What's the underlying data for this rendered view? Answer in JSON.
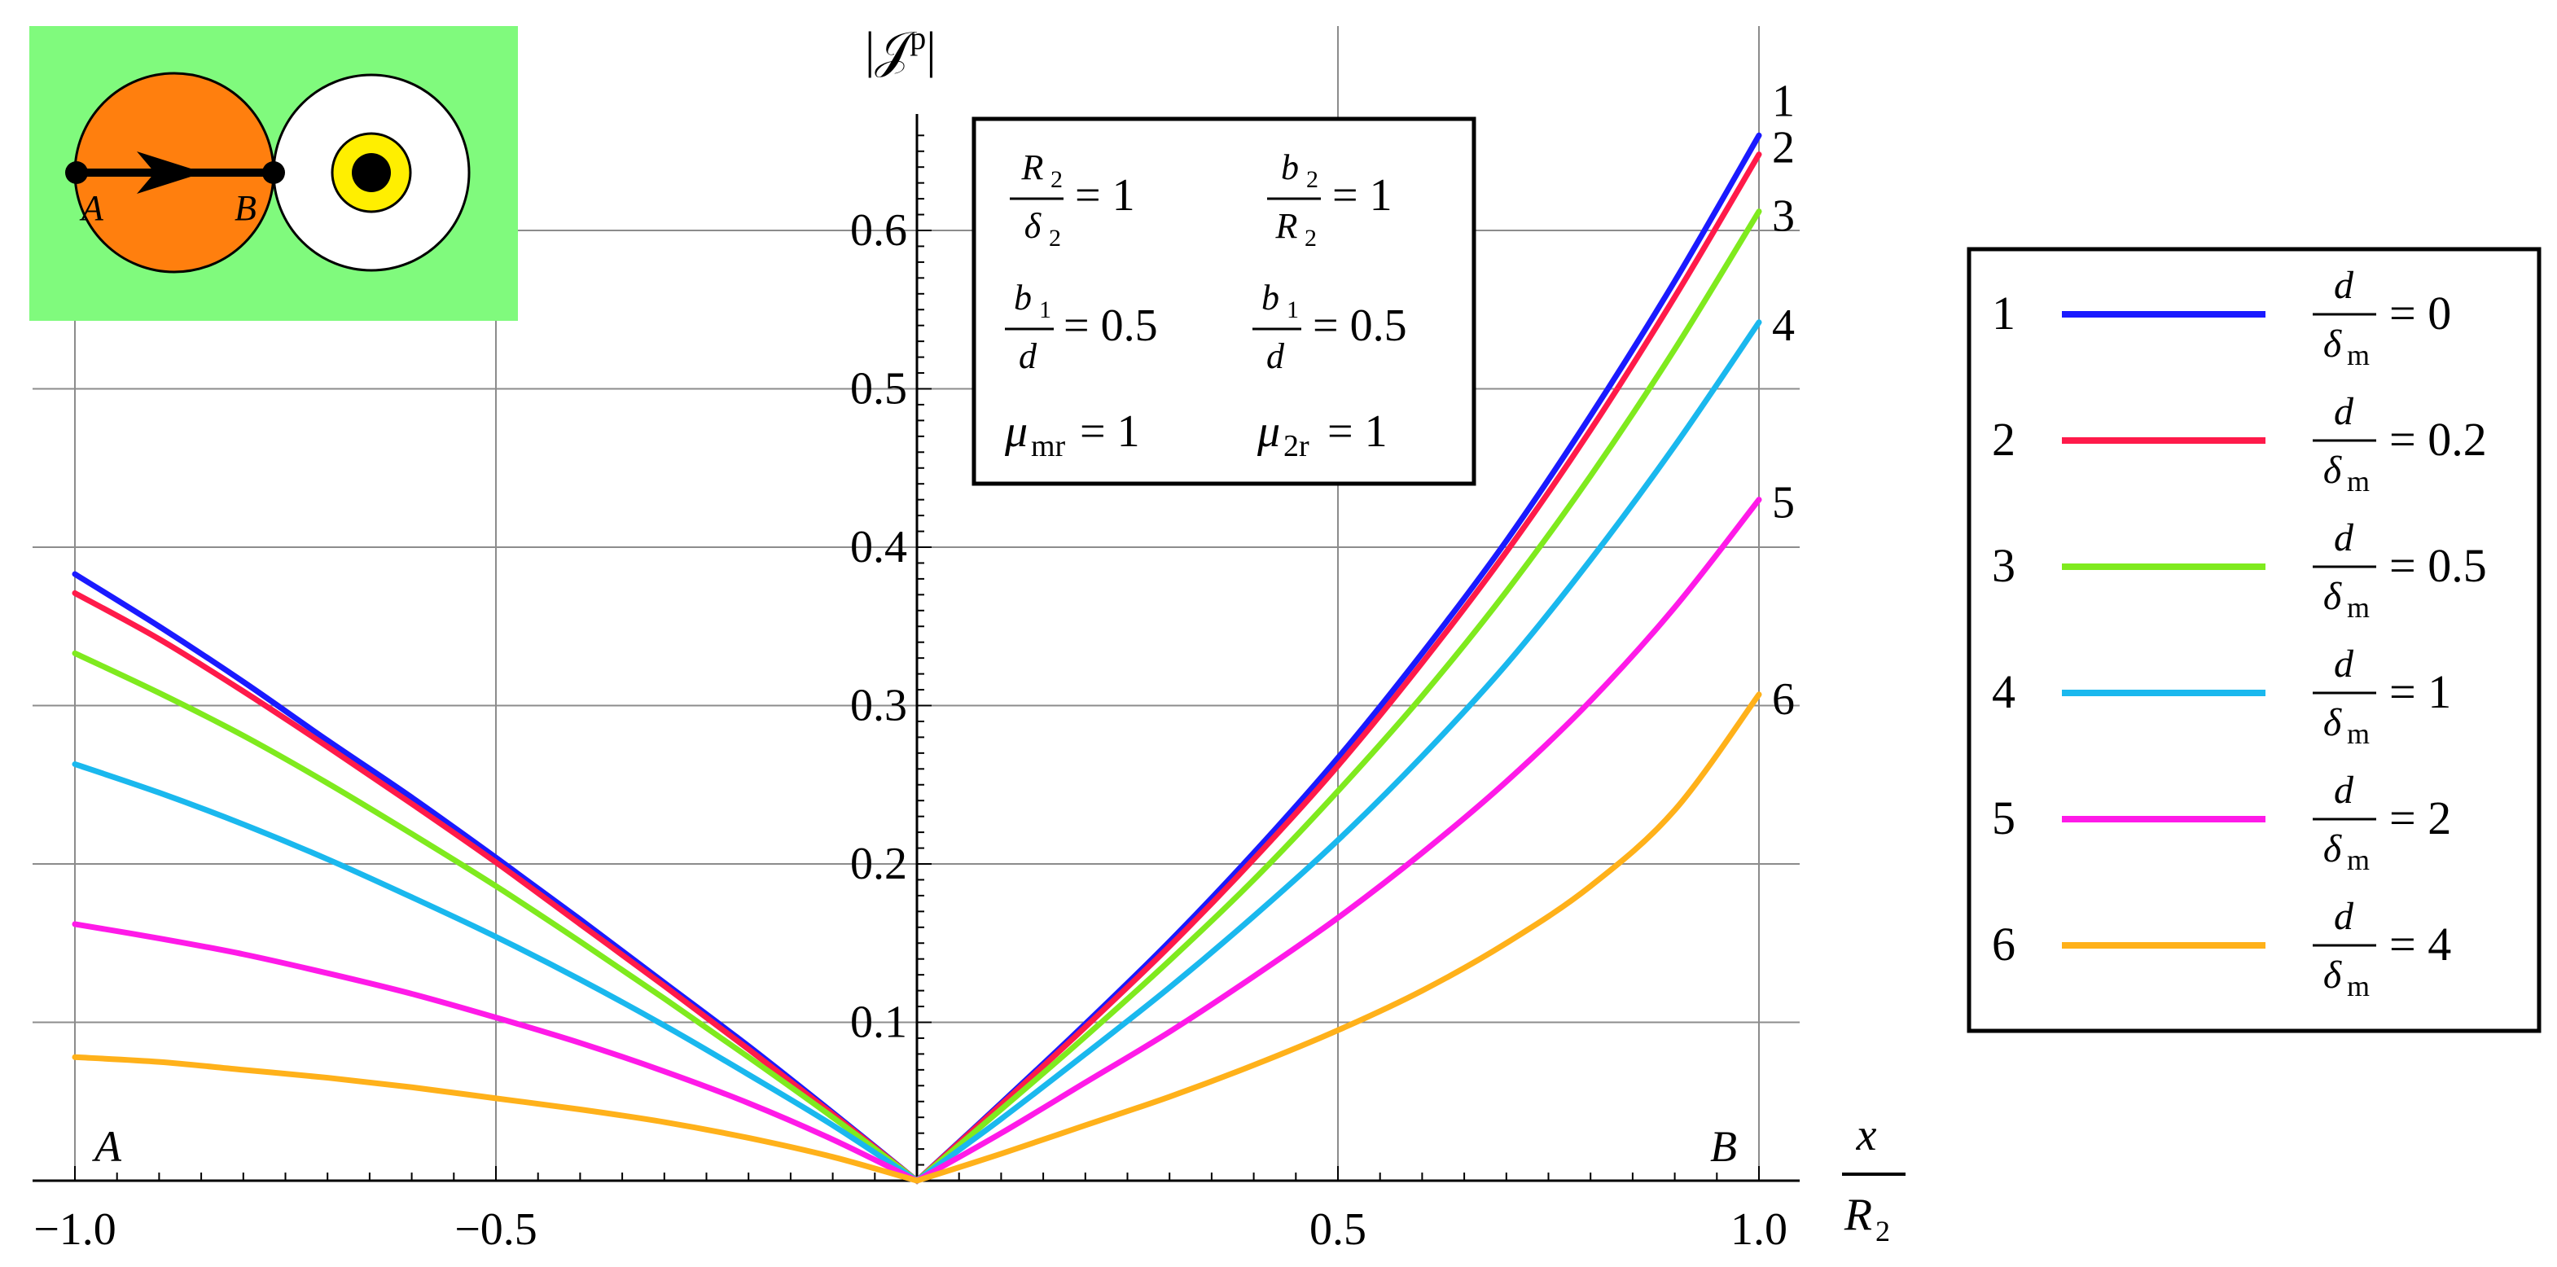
{
  "chart_data": {
    "type": "line",
    "title": "",
    "ylabel_main": "|𝒥",
    "ylabel_sup": "p",
    "ylabel_close": "|",
    "xlabel_num": "x",
    "xlabel_den": "R",
    "xlabel_den_sub": "2",
    "xlim": [
      -1.0,
      1.0
    ],
    "ylim": [
      0,
      0.66
    ],
    "x_ticks": [
      -1.0,
      -0.5,
      0.5,
      1.0
    ],
    "x_tick_labels": [
      "−1.0",
      "−0.5",
      "0.5",
      "1.0"
    ],
    "y_ticks": [
      0.1,
      0.2,
      0.3,
      0.4,
      0.5,
      0.6
    ],
    "y_tick_labels": [
      "0.1",
      "0.2",
      "0.3",
      "0.4",
      "0.5",
      "0.6"
    ],
    "grid": true,
    "point_labels": {
      "A": "A",
      "B": "B"
    },
    "x": [
      -1.0,
      -0.9,
      -0.8,
      -0.7,
      -0.6,
      -0.5,
      -0.4,
      -0.3,
      -0.2,
      -0.1,
      0.0,
      0.1,
      0.2,
      0.3,
      0.4,
      0.5,
      0.6,
      0.7,
      0.8,
      0.9,
      1.0
    ],
    "series": [
      {
        "name": "1",
        "color": "#1a1aff",
        "values": [
          0.383,
          0.35,
          0.315,
          0.278,
          0.242,
          0.204,
          0.165,
          0.125,
          0.085,
          0.043,
          0.0,
          0.049,
          0.099,
          0.151,
          0.207,
          0.267,
          0.333,
          0.404,
          0.483,
          0.568,
          0.66
        ]
      },
      {
        "name": "2",
        "color": "#ff1a4a",
        "values": [
          0.371,
          0.342,
          0.309,
          0.274,
          0.238,
          0.201,
          0.162,
          0.123,
          0.083,
          0.042,
          0.0,
          0.048,
          0.097,
          0.148,
          0.203,
          0.262,
          0.327,
          0.397,
          0.474,
          0.558,
          0.648
        ]
      },
      {
        "name": "3",
        "color": "#7fea1e",
        "values": [
          0.333,
          0.308,
          0.281,
          0.251,
          0.219,
          0.186,
          0.151,
          0.115,
          0.078,
          0.04,
          0.0,
          0.045,
          0.091,
          0.139,
          0.19,
          0.246,
          0.306,
          0.372,
          0.445,
          0.525,
          0.612
        ]
      },
      {
        "name": "4",
        "color": "#1ab8ee",
        "values": [
          0.263,
          0.245,
          0.225,
          0.203,
          0.179,
          0.154,
          0.127,
          0.098,
          0.067,
          0.035,
          0.0,
          0.039,
          0.08,
          0.122,
          0.167,
          0.215,
          0.268,
          0.326,
          0.392,
          0.464,
          0.542
        ]
      },
      {
        "name": "5",
        "color": "#ff1ae8",
        "values": [
          0.162,
          0.153,
          0.143,
          0.131,
          0.118,
          0.103,
          0.087,
          0.069,
          0.049,
          0.026,
          0.0,
          0.03,
          0.062,
          0.094,
          0.129,
          0.166,
          0.207,
          0.252,
          0.303,
          0.362,
          0.43
        ]
      },
      {
        "name": "6",
        "color": "#ffb11a",
        "values": [
          0.078,
          0.075,
          0.07,
          0.065,
          0.059,
          0.052,
          0.045,
          0.037,
          0.027,
          0.015,
          0.0,
          0.017,
          0.035,
          0.053,
          0.073,
          0.095,
          0.12,
          0.15,
          0.186,
          0.234,
          0.307
        ]
      }
    ]
  },
  "params": [
    {
      "lhs_num": "R",
      "lhs_num_sub": "2",
      "lhs_den": "δ",
      "lhs_den_sub": "2",
      "rhs": "= 1"
    },
    {
      "lhs_num": "b",
      "lhs_num_sub": "2",
      "lhs_den": "R",
      "lhs_den_sub": "2",
      "rhs": "= 1"
    },
    {
      "lhs_num": "b",
      "lhs_num_sub": "1",
      "lhs_den": "d",
      "lhs_den_sub": "",
      "rhs": "= 0.5"
    },
    {
      "lhs_num": "b",
      "lhs_num_sub": "1",
      "lhs_den": "d",
      "lhs_den_sub": "",
      "rhs": "= 0.5"
    },
    {
      "sym": "μ",
      "sub": "mr",
      "rhs": "= 1"
    },
    {
      "sym": "μ",
      "sub": "2r",
      "rhs": "= 1"
    }
  ],
  "legend": {
    "frac_num": "d",
    "frac_den": "δ",
    "frac_den_sub": "m",
    "items": [
      {
        "num": "1",
        "rhs": "= 0"
      },
      {
        "num": "2",
        "rhs": "= 0.2"
      },
      {
        "num": "3",
        "rhs": "= 0.5"
      },
      {
        "num": "4",
        "rhs": "= 1"
      },
      {
        "num": "5",
        "rhs": "= 2"
      },
      {
        "num": "6",
        "rhs": "= 4"
      }
    ]
  },
  "inset": {
    "bg_color": "#80fa7d",
    "left_disk_color": "#ff7f0e",
    "core_color": "#ffef00",
    "label_a": "A",
    "label_b": "B"
  }
}
